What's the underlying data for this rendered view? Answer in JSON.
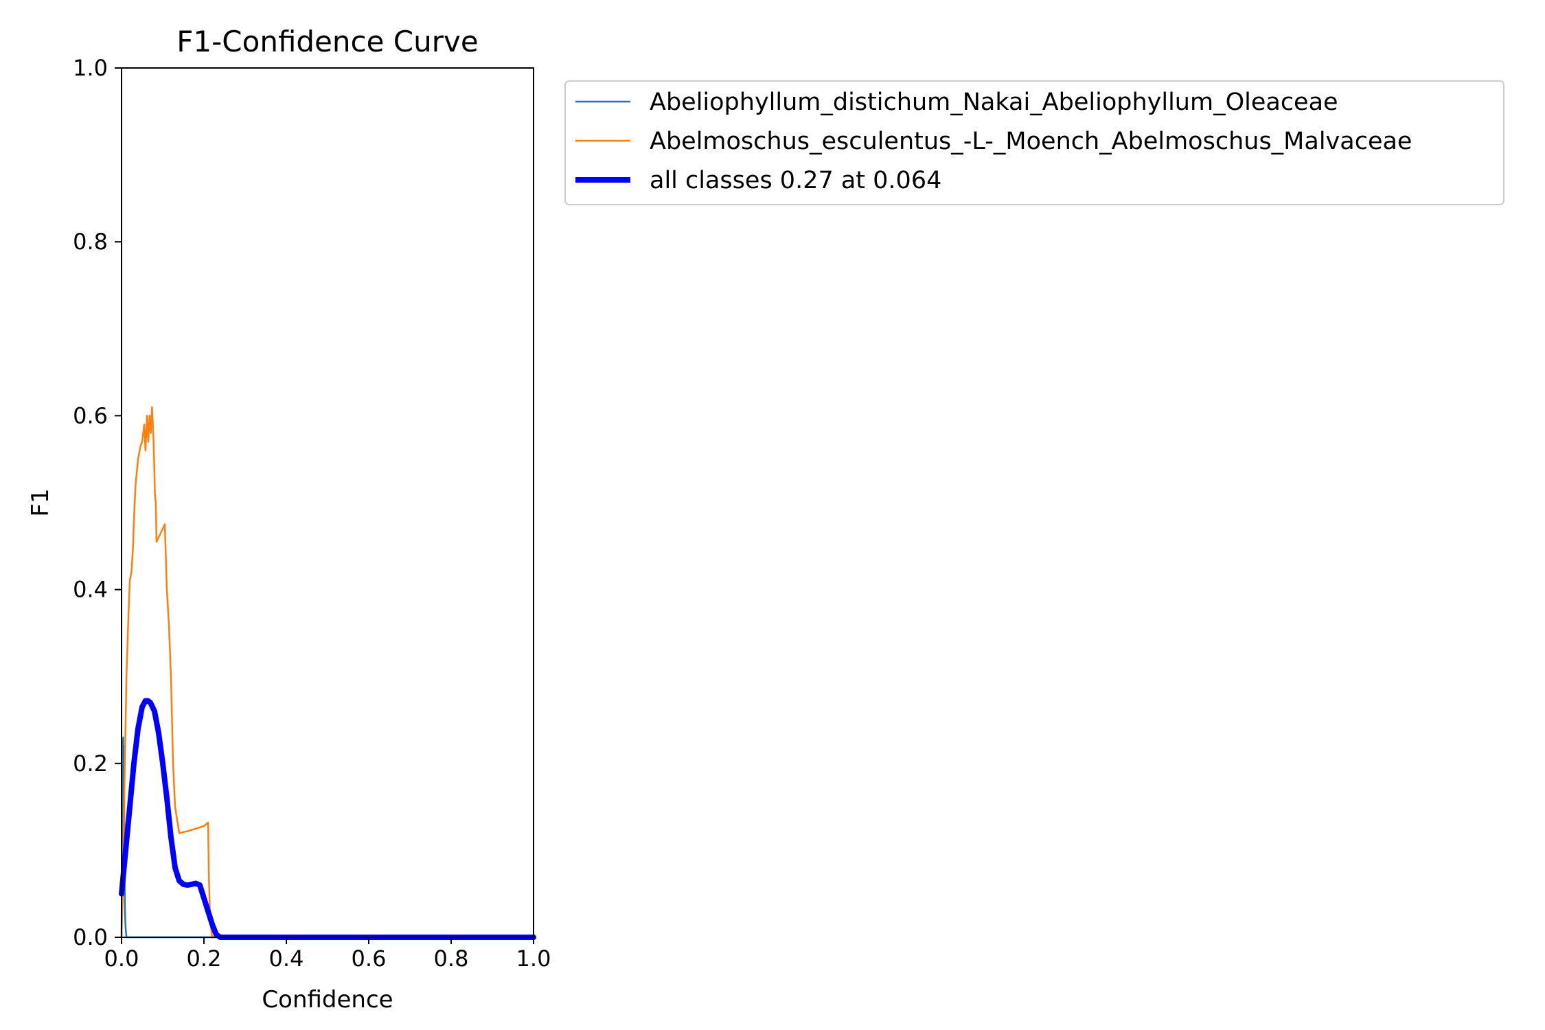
{
  "chart_data": {
    "type": "line",
    "title": "F1-Confidence Curve",
    "xlabel": "Confidence",
    "ylabel": "F1",
    "xlim": [
      0,
      1
    ],
    "ylim": [
      0,
      1
    ],
    "xticks": [
      "0.0",
      "0.2",
      "0.4",
      "0.6",
      "0.8",
      "1.0"
    ],
    "yticks": [
      "0.0",
      "0.2",
      "0.4",
      "0.6",
      "0.8",
      "1.0"
    ],
    "grid": false,
    "legend_position": "outside-top-right",
    "series": [
      {
        "name": "Abeliophyllum_distichum_Nakai_Abeliophyllum_Oleaceae",
        "color": "#1f77b4",
        "x": [
          0.0,
          0.001,
          0.003,
          0.004,
          0.005,
          0.006,
          0.007,
          0.008,
          0.009,
          0.01,
          0.012,
          0.015,
          0.2,
          0.4,
          0.6,
          0.8,
          1.0
        ],
        "y": [
          0.0,
          0.1,
          0.22,
          0.23,
          0.12,
          0.22,
          0.1,
          0.04,
          0.02,
          0.01,
          0.0,
          0.0,
          0.0,
          0.0,
          0.0,
          0.0,
          0.0
        ]
      },
      {
        "name": "Abelmoschus_esculentus_-L-_Moench_Abelmoschus_Malvaceae",
        "color": "#ff7f0e",
        "x": [
          0.0,
          0.003,
          0.005,
          0.008,
          0.012,
          0.016,
          0.02,
          0.024,
          0.028,
          0.03,
          0.034,
          0.04,
          0.044,
          0.046,
          0.05,
          0.055,
          0.058,
          0.062,
          0.065,
          0.068,
          0.071,
          0.074,
          0.077,
          0.079,
          0.081,
          0.083,
          0.085,
          0.09,
          0.1,
          0.105,
          0.11,
          0.115,
          0.12,
          0.125,
          0.13,
          0.14,
          0.16,
          0.18,
          0.2,
          0.21,
          0.212,
          0.215,
          0.22,
          0.24,
          0.4,
          0.6,
          0.8,
          1.0
        ],
        "y": [
          0.0,
          0.05,
          0.11,
          0.2,
          0.3,
          0.36,
          0.41,
          0.42,
          0.45,
          0.48,
          0.52,
          0.55,
          0.56,
          0.565,
          0.57,
          0.59,
          0.56,
          0.6,
          0.57,
          0.6,
          0.58,
          0.61,
          0.58,
          0.55,
          0.51,
          0.5,
          0.455,
          0.46,
          0.47,
          0.475,
          0.4,
          0.36,
          0.3,
          0.2,
          0.15,
          0.12,
          0.122,
          0.125,
          0.128,
          0.132,
          0.07,
          0.02,
          0.0,
          0.0,
          0.0,
          0.0,
          0.0,
          0.0
        ]
      },
      {
        "name": "all classes 0.27 at 0.064",
        "color": "#0000ff",
        "thick": true,
        "x": [
          0.0,
          0.01,
          0.02,
          0.03,
          0.04,
          0.05,
          0.058,
          0.064,
          0.07,
          0.08,
          0.09,
          0.1,
          0.11,
          0.12,
          0.13,
          0.14,
          0.15,
          0.16,
          0.17,
          0.18,
          0.19,
          0.2,
          0.21,
          0.22,
          0.23,
          0.24,
          0.3,
          0.4,
          0.5,
          0.6,
          0.7,
          0.8,
          0.9,
          1.0
        ],
        "y": [
          0.05,
          0.1,
          0.15,
          0.2,
          0.24,
          0.265,
          0.272,
          0.272,
          0.27,
          0.26,
          0.235,
          0.2,
          0.16,
          0.115,
          0.08,
          0.065,
          0.061,
          0.06,
          0.061,
          0.062,
          0.06,
          0.045,
          0.03,
          0.015,
          0.003,
          0.0,
          0.0,
          0.0,
          0.0,
          0.0,
          0.0,
          0.0,
          0.0,
          0.0
        ]
      }
    ]
  }
}
